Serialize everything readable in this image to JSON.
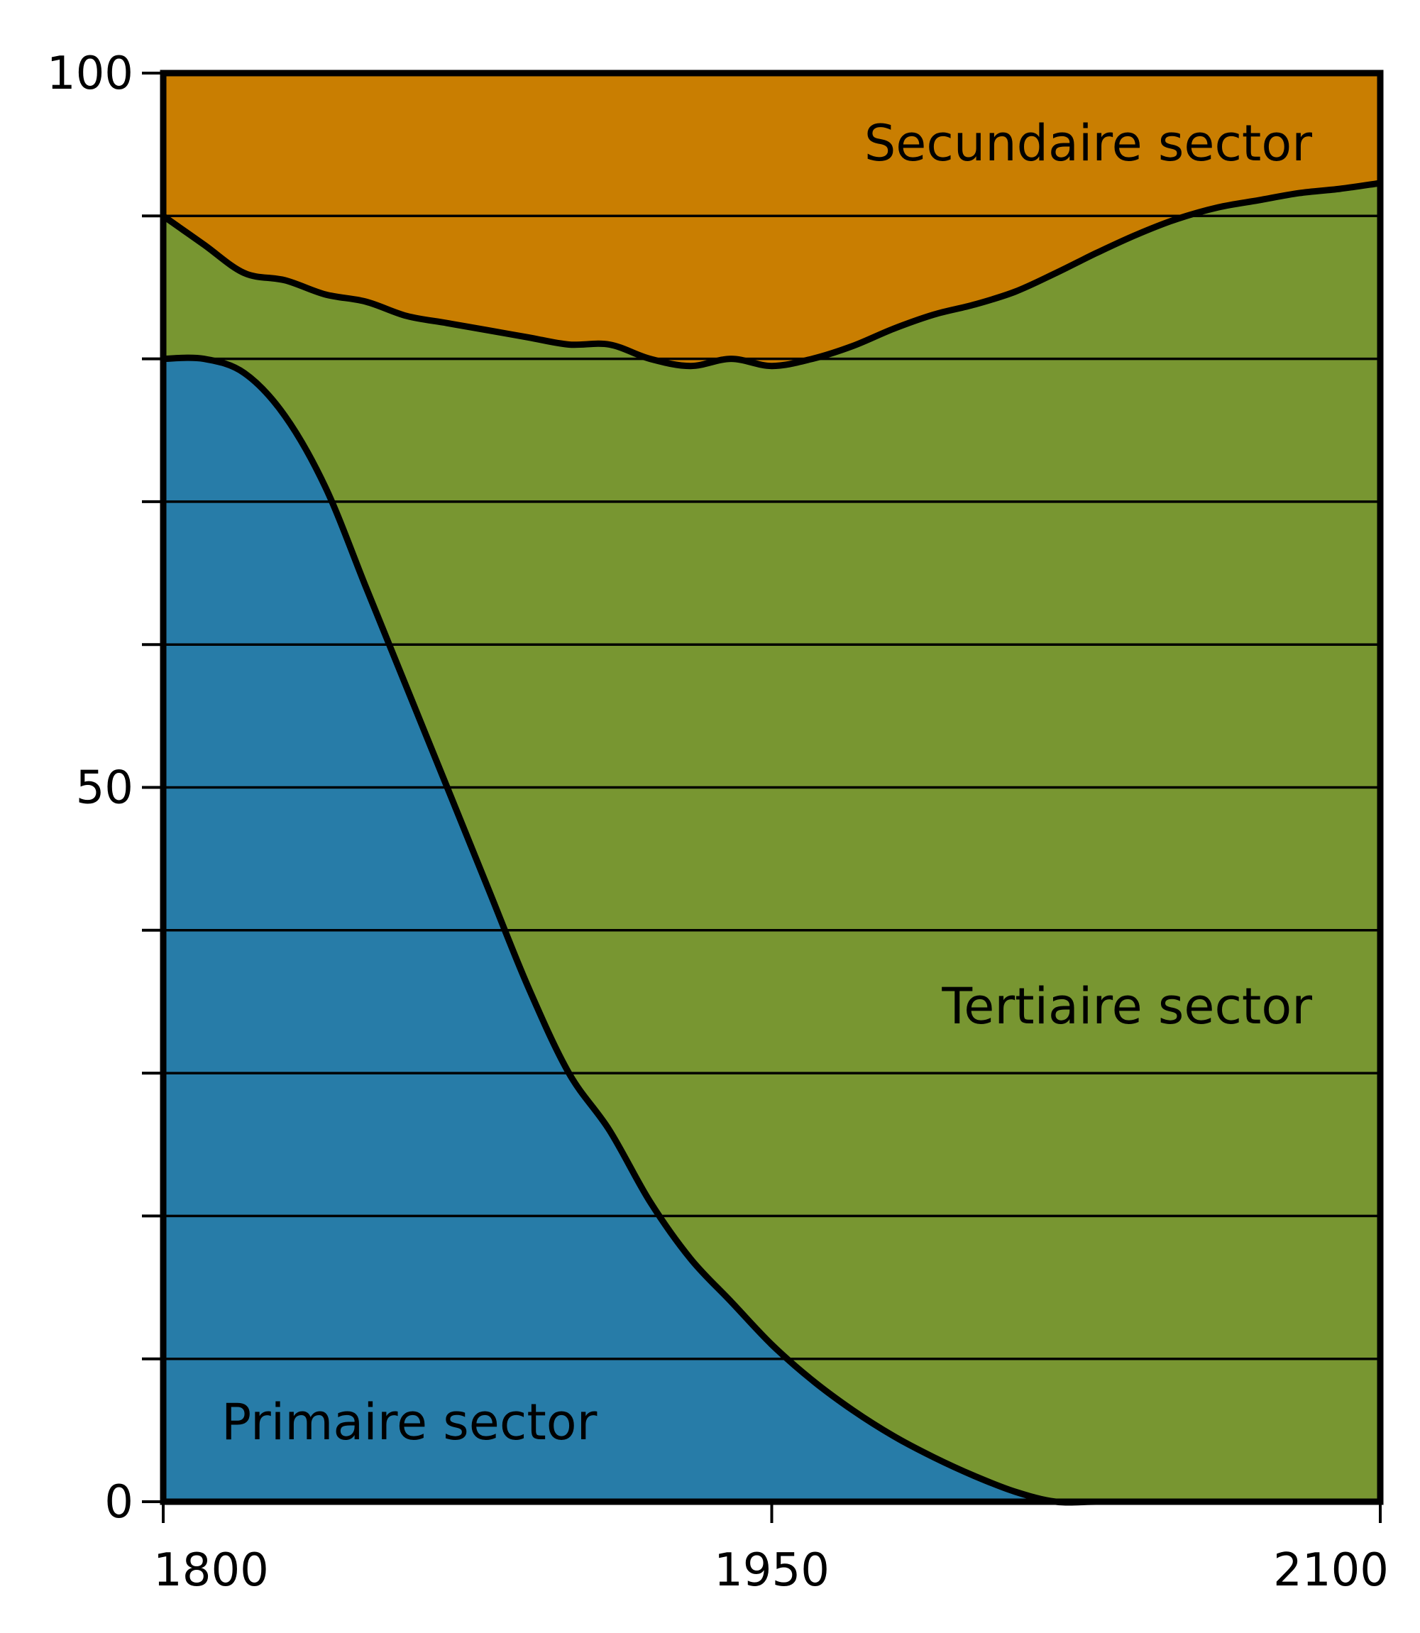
{
  "chart_data": {
    "type": "area",
    "stacked": true,
    "x_min": 1800,
    "x_max": 2100,
    "ylim": [
      0,
      100
    ],
    "x_ticks": [
      1800,
      1950,
      2100
    ],
    "y_ticks": [
      0,
      50,
      100
    ],
    "grid_y_values": [
      10,
      20,
      30,
      40,
      50,
      60,
      70,
      80,
      90
    ],
    "grid": true,
    "x": [
      1800,
      1810,
      1820,
      1830,
      1840,
      1850,
      1860,
      1870,
      1880,
      1890,
      1900,
      1910,
      1920,
      1930,
      1940,
      1950,
      1960,
      1970,
      1980,
      1990,
      2000,
      2010,
      2020,
      2030,
      2040,
      2050,
      2060,
      2070,
      2080,
      2090,
      2100
    ],
    "series": [
      {
        "name": "Primaire sector",
        "color": "#277ca8",
        "label_position": "bottom-left",
        "values": [
          80,
          80,
          79,
          76,
          71,
          64,
          57,
          50,
          43,
          36,
          30,
          26,
          21,
          17,
          14,
          11,
          8.5,
          6.4,
          4.6,
          3.1,
          1.8,
          0.7,
          -0.2,
          -1.0,
          -1.7,
          -2.2,
          -2.7,
          -3.1,
          -3.4,
          -3.6,
          -3.7
        ]
      },
      {
        "name": "Tertiaire sector",
        "color": "#789631",
        "label_position": "center-right",
        "values": [
          10,
          8,
          7,
          9.5,
          13.5,
          20,
          26,
          32.5,
          39,
          45.5,
          51,
          55,
          59,
          62.5,
          66,
          68.5,
          71.5,
          74.5,
          77.5,
          80,
          82,
          84,
          86.2,
          88.4,
          90.4,
          92,
          93.3,
          94.2,
          95,
          95.5,
          96
        ]
      },
      {
        "name": "Secundaire sector",
        "color": "#c97e01",
        "label_position": "top-right",
        "values": [
          10,
          12,
          14,
          14.5,
          15.5,
          16,
          17,
          17.5,
          18,
          18.5,
          19,
          19,
          20,
          20.5,
          20,
          20.5,
          20,
          19.1,
          17.9,
          16.9,
          16.2,
          15.3,
          14,
          12.6,
          11.3,
          10.2,
          9.4,
          8.9,
          8.4,
          8.1,
          7.7
        ]
      }
    ],
    "title": "",
    "xlabel": "",
    "ylabel": "",
    "legend": "labels inside areas"
  }
}
